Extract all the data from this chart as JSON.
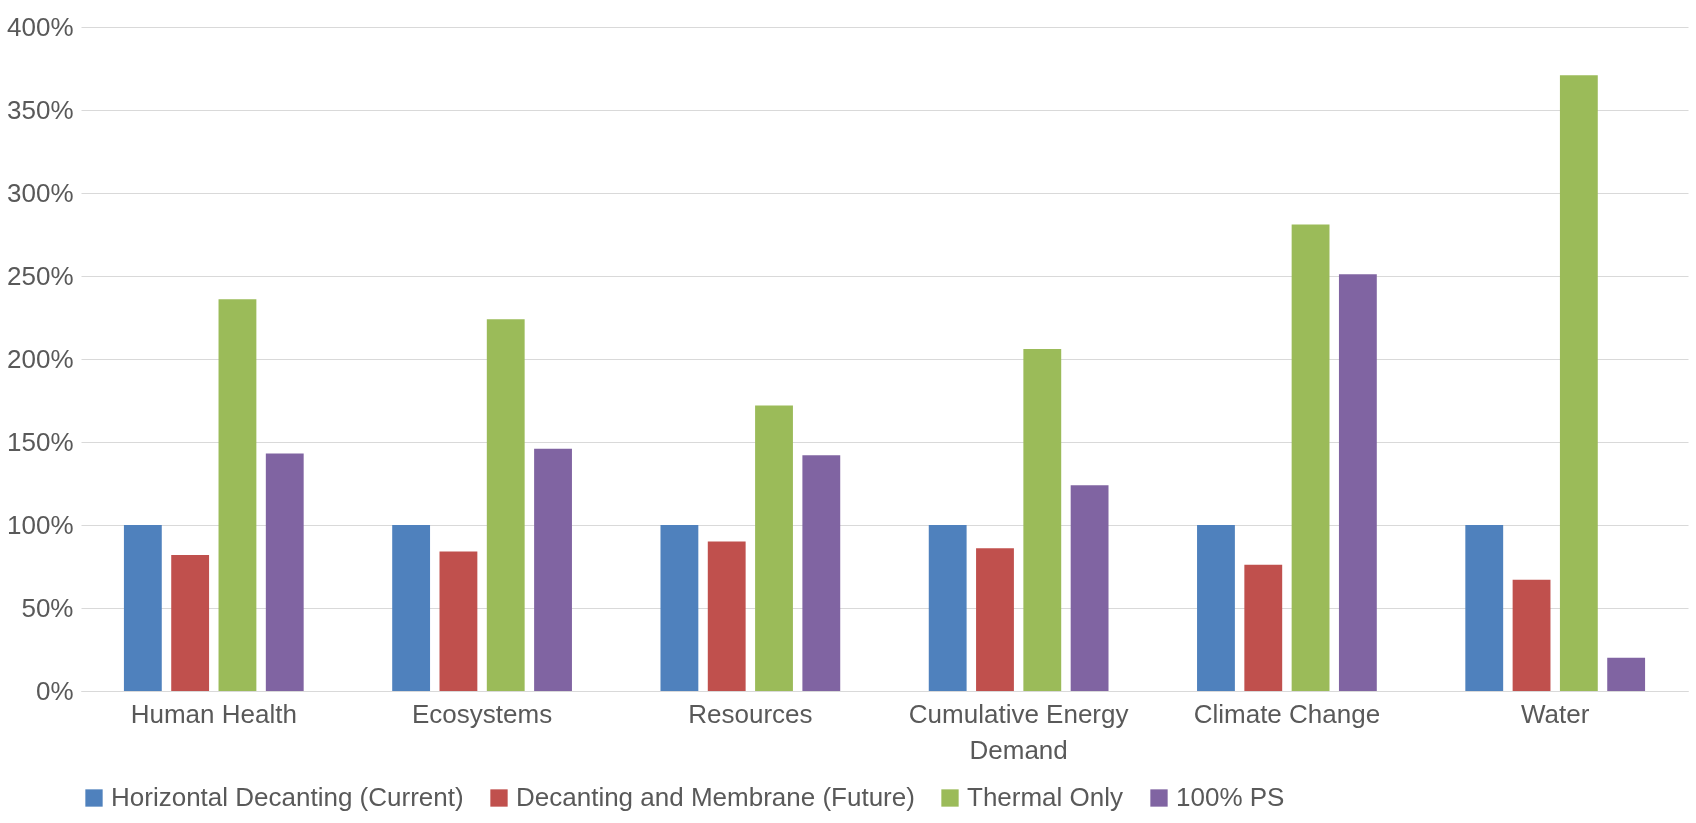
{
  "chart_data": {
    "type": "bar",
    "categories": [
      "Human Health",
      "Ecosystems",
      "Resources",
      "Cumulative Energy Demand",
      "Climate Change",
      "Water"
    ],
    "series": [
      {
        "name": "Horizontal Decanting (Current)",
        "color": "#4f81bd",
        "values": [
          100,
          100,
          100,
          100,
          100,
          100
        ]
      },
      {
        "name": "Decanting and Membrane (Future)",
        "color": "#c0504d",
        "values": [
          82,
          84,
          90,
          86,
          76,
          67
        ]
      },
      {
        "name": "Thermal Only",
        "color": "#9bbb59",
        "values": [
          236,
          224,
          172,
          206,
          281,
          371
        ]
      },
      {
        "name": "100% PS",
        "color": "#8064a2",
        "values": [
          143,
          146,
          142,
          124,
          251,
          20
        ]
      }
    ],
    "ylim": [
      0,
      400
    ],
    "yticks": [
      {
        "value": 0,
        "label": "0%"
      },
      {
        "value": 50,
        "label": "50%"
      },
      {
        "value": 100,
        "label": "100%"
      },
      {
        "value": 150,
        "label": "150%"
      },
      {
        "value": 200,
        "label": "200%"
      },
      {
        "value": 250,
        "label": "250%"
      },
      {
        "value": 300,
        "label": "300%"
      },
      {
        "value": 350,
        "label": "350%"
      },
      {
        "value": 400,
        "label": "400%"
      }
    ],
    "grid": "y",
    "legend": "bottom"
  }
}
